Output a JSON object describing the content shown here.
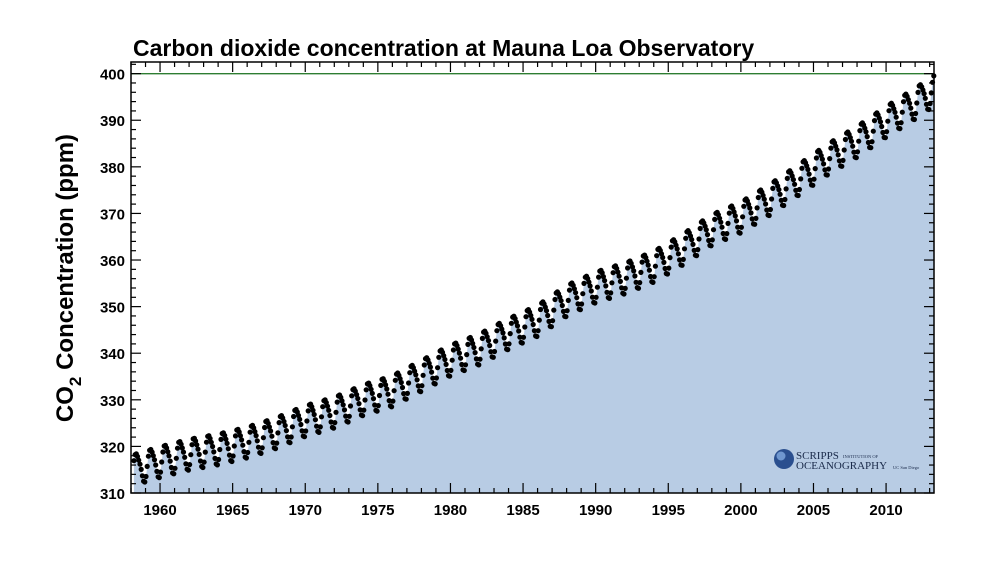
{
  "chart_data": {
    "type": "scatter",
    "title": "Carbon dioxide concentration at Mauna Loa Observatory",
    "ylabel": {
      "main": "CO",
      "sub": "2",
      "rest": " Concentration (ppm)"
    },
    "xlabel": "",
    "xlim": [
      1958.0,
      2013.3
    ],
    "ylim": [
      310,
      402.5
    ],
    "x_ticks": [
      1960,
      1965,
      1970,
      1975,
      1980,
      1985,
      1990,
      1995,
      2000,
      2005,
      2010
    ],
    "y_ticks": [
      310,
      320,
      330,
      340,
      350,
      360,
      370,
      380,
      390,
      400
    ],
    "reference_line": {
      "y": 400,
      "color": "#2e7d32"
    },
    "fill_color": "#b8cce4",
    "point_color": "#000000",
    "grid": false,
    "series": [
      {
        "annual_trend_points": [
          [
            1958,
            315.0
          ],
          [
            1960,
            316.9
          ],
          [
            1962,
            318.5
          ],
          [
            1964,
            319.6
          ],
          [
            1966,
            321.1
          ],
          [
            1968,
            323.1
          ],
          [
            1970,
            325.7
          ],
          [
            1972,
            327.5
          ],
          [
            1974,
            330.2
          ],
          [
            1976,
            332.1
          ],
          [
            1978,
            335.4
          ],
          [
            1980,
            338.7
          ],
          [
            1982,
            341.1
          ],
          [
            1984,
            344.4
          ],
          [
            1986,
            347.2
          ],
          [
            1988,
            351.5
          ],
          [
            1990,
            354.4
          ],
          [
            1992,
            356.3
          ],
          [
            1994,
            358.8
          ],
          [
            1996,
            362.5
          ],
          [
            1998,
            366.7
          ],
          [
            2000,
            369.4
          ],
          [
            2002,
            373.2
          ],
          [
            2004,
            377.5
          ],
          [
            2006,
            381.9
          ],
          [
            2008,
            385.6
          ],
          [
            2010,
            389.9
          ],
          [
            2012,
            393.8
          ],
          [
            2013.3,
            396.6
          ]
        ],
        "seasonal_amplitude_ppm": 3.2,
        "period_start": 1958.2,
        "period_end": 2013.3
      }
    ]
  },
  "logo": {
    "line1": "SCRIPPS",
    "line1_small": "INSTITUTION OF",
    "line2": "OCEANOGRAPHY",
    "line2_small": "UC San Diego"
  }
}
